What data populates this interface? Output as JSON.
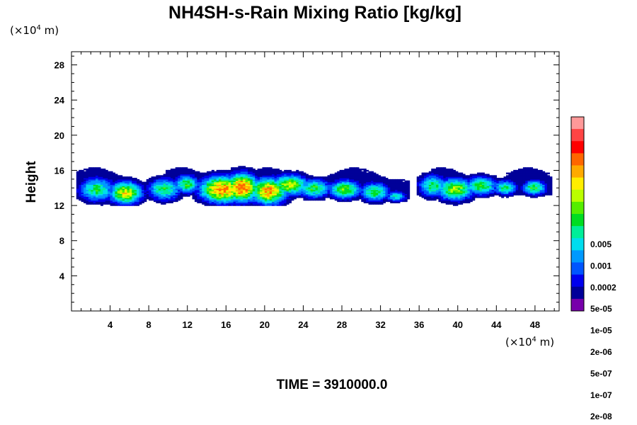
{
  "chart_data": {
    "type": "heatmap",
    "title": "NH4SH-s-Rain Mixing Ratio [kg/kg]",
    "ylabel": "Height",
    "unit_prefix": "(×10",
    "unit_exp": "4",
    "unit_suffix": " m)",
    "xlim": [
      0,
      50.5
    ],
    "ylim": [
      0,
      29.5
    ],
    "x_ticks": [
      4,
      8,
      12,
      16,
      20,
      24,
      28,
      32,
      36,
      40,
      44,
      48
    ],
    "y_ticks": [
      4,
      8,
      12,
      16,
      20,
      24,
      28
    ],
    "colorbar": {
      "labels": [
        "0.005",
        "0.001",
        "0.0002",
        "5e-05",
        "1e-05",
        "2e-06",
        "5e-07",
        "1e-07",
        "2e-08"
      ],
      "colors": [
        "#ff9999",
        "#ff4444",
        "#ff0000",
        "#ff6600",
        "#ffaa00",
        "#ffee00",
        "#bbff00",
        "#55ee00",
        "#00dd22",
        "#00ee99",
        "#00ddee",
        "#0099ff",
        "#0055ff",
        "#0000ee",
        "#000099",
        "#7700aa"
      ]
    },
    "layer": {
      "base_height_approx": 12.5,
      "top_height_approx": 16.5,
      "x_extent": [
        0.5,
        49.5
      ],
      "gap_x": [
        34.8,
        35.7
      ],
      "max_values_near_x": [
        6,
        16,
        17,
        21
      ]
    },
    "footer": "TIME = 3910000.0"
  }
}
